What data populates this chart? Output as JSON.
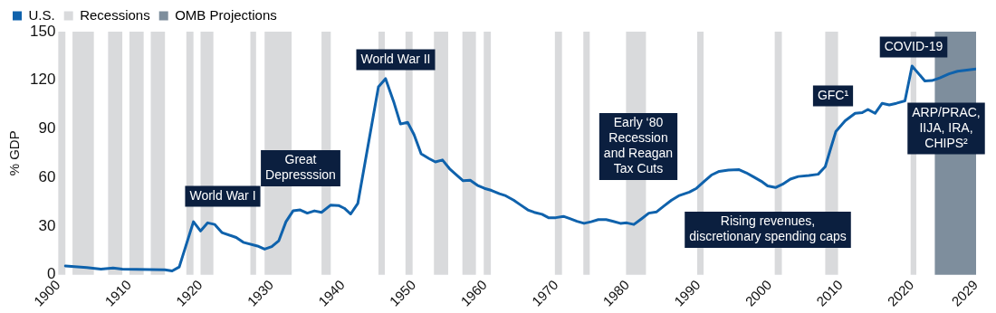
{
  "chart_data": {
    "type": "line",
    "ylabel": "% GDP",
    "xlim": [
      1900,
      2029
    ],
    "xticks": [
      1900,
      1910,
      1920,
      1930,
      1940,
      1950,
      1960,
      1970,
      1980,
      1990,
      2000,
      2010,
      2020,
      2029
    ],
    "ylim": [
      0,
      150
    ],
    "yticks": [
      0,
      30,
      60,
      90,
      120,
      150
    ],
    "grid": false,
    "legend": "top left",
    "marker": "none",
    "line_style": "solid",
    "series": [
      {
        "name": "U.S.",
        "color": "#0f62ac",
        "x": [
          1901,
          1904,
          1906,
          1907.7,
          1909,
          1913,
          1915,
          1916,
          1917,
          1919,
          1920,
          1921,
          1922,
          1923,
          1925,
          1926,
          1928,
          1929,
          1930,
          1931,
          1932,
          1933,
          1934,
          1935,
          1936,
          1937,
          1938.3,
          1939.4,
          1940.2,
          1941.1,
          1942.1,
          1945,
          1946,
          1947.2,
          1948.1,
          1949.1,
          1950,
          1951,
          1952.1,
          1953,
          1954,
          1955,
          1956,
          1956.9,
          1957.9,
          1958.9,
          1959.9,
          1960.9,
          1962,
          1962.9,
          1964,
          1964.9,
          1966,
          1966.9,
          1968,
          1968.9,
          1969.9,
          1971,
          1971.9,
          1972.9,
          1973.9,
          1974.9,
          1975.9,
          1977,
          1977.9,
          1979,
          1979.9,
          1980.9,
          1982,
          1983,
          1984.1,
          1985.1,
          1986.2,
          1987.2,
          1988.7,
          1989.7,
          1990.8,
          1991.8,
          1992.9,
          1994.2,
          1995.7,
          1996.7,
          1997.8,
          1998.8,
          1999.7,
          2000.8,
          2001.8,
          2002.9,
          2004,
          2005.5,
          2006.8,
          2007.8,
          2008.5,
          2009.3,
          2010.6,
          2012,
          2013,
          2013.8,
          2014.8,
          2015.8,
          2016.8,
          2017.8,
          2019,
          2020,
          2021.8,
          2022.8,
          2023.9,
          2025.2,
          2026.4,
          2027.7,
          2029
        ],
        "values": [
          5.4,
          4.4,
          3.5,
          4.2,
          3.5,
          3.1,
          3,
          2.3,
          4.8,
          32.7,
          27,
          32,
          31,
          26,
          23,
          20,
          17.7,
          15.8,
          17.3,
          21,
          32.7,
          39.4,
          40,
          38,
          39.4,
          38.5,
          43,
          42.7,
          41,
          37.5,
          44,
          116,
          121,
          106,
          93,
          94,
          86.5,
          74.6,
          71.7,
          69.6,
          70.8,
          65.4,
          61.5,
          58,
          58.3,
          55.2,
          53.3,
          52,
          50,
          48.7,
          46,
          43.3,
          40,
          38.5,
          37.3,
          35.2,
          35.2,
          36,
          34.6,
          33,
          31.7,
          32.7,
          34,
          34,
          33,
          31.7,
          32,
          31,
          34.6,
          38,
          38.8,
          42.3,
          46,
          48.7,
          51,
          53.3,
          57.7,
          61.5,
          63.8,
          64.6,
          64.8,
          62.9,
          60.2,
          57.7,
          54.8,
          53.8,
          55.8,
          59,
          60.6,
          61.2,
          62,
          66.7,
          77,
          88.5,
          95,
          99.6,
          100,
          102,
          99.6,
          105.8,
          104.8,
          105.8,
          107.3,
          128.8,
          119.6,
          119.8,
          121.5,
          124,
          125.6,
          126.3,
          127
        ]
      }
    ],
    "bands": [
      {
        "axis": "x",
        "from": 1900,
        "to": 1901,
        "label": "Recessions",
        "color": "#d9dadc"
      },
      {
        "axis": "x",
        "from": 1902,
        "to": 1905,
        "color": "#d9dadc"
      },
      {
        "axis": "x",
        "from": 1907,
        "to": 1909,
        "color": "#d9dadc"
      },
      {
        "axis": "x",
        "from": 1910,
        "to": 1912,
        "color": "#d9dadc"
      },
      {
        "axis": "x",
        "from": 1913,
        "to": 1915,
        "color": "#d9dadc"
      },
      {
        "axis": "x",
        "from": 1918,
        "to": 1919,
        "color": "#d9dadc"
      },
      {
        "axis": "x",
        "from": 1920,
        "to": 1921.8,
        "color": "#d9dadc"
      },
      {
        "axis": "x",
        "from": 1927,
        "to": 1927.8,
        "color": "#d9dadc"
      },
      {
        "axis": "x",
        "from": 1929,
        "to": 1932.8,
        "color": "#d9dadc"
      },
      {
        "axis": "x",
        "from": 1937,
        "to": 1938.3,
        "color": "#d9dadc"
      },
      {
        "axis": "x",
        "from": 1945,
        "to": 1945.9,
        "color": "#d9dadc"
      },
      {
        "axis": "x",
        "from": 1948.8,
        "to": 1949.8,
        "color": "#d9dadc"
      },
      {
        "axis": "x",
        "from": 1952.8,
        "to": 1954.8,
        "color": "#d9dadc"
      },
      {
        "axis": "x",
        "from": 1956.8,
        "to": 1958.7,
        "color": "#d9dadc"
      },
      {
        "axis": "x",
        "from": 1959.8,
        "to": 1960.8,
        "color": "#d9dadc"
      },
      {
        "axis": "x",
        "from": 1969.8,
        "to": 1970.8,
        "color": "#d9dadc"
      },
      {
        "axis": "x",
        "from": 1973.8,
        "to": 1974.7,
        "color": "#d9dadc"
      },
      {
        "axis": "x",
        "from": 1979.8,
        "to": 1982.6,
        "color": "#d9dadc"
      },
      {
        "axis": "x",
        "from": 1989.8,
        "to": 1990.7,
        "color": "#d9dadc"
      },
      {
        "axis": "x",
        "from": 2000.7,
        "to": 2001.7,
        "color": "#d9dadc"
      },
      {
        "axis": "x",
        "from": 2007.8,
        "to": 2009.6,
        "color": "#d9dadc"
      },
      {
        "axis": "x",
        "from": 2019.8,
        "to": 2020.6,
        "color": "#d9dadc"
      },
      {
        "axis": "x",
        "from": 2023.2,
        "to": 2029,
        "label": "OMB Projections",
        "color": "#7e8e9d"
      }
    ],
    "annotations": [
      "World War I",
      "Great\nDepresssion",
      "World War II",
      "Early ‘80\nRecession\nand Reagan\nTax Cuts",
      "Rising revenues,\ndiscretionary spending caps",
      "GFC¹",
      "COVID-19",
      "ARP/PRAC,\nIIJA, IRA,\nCHIPS²"
    ]
  }
}
